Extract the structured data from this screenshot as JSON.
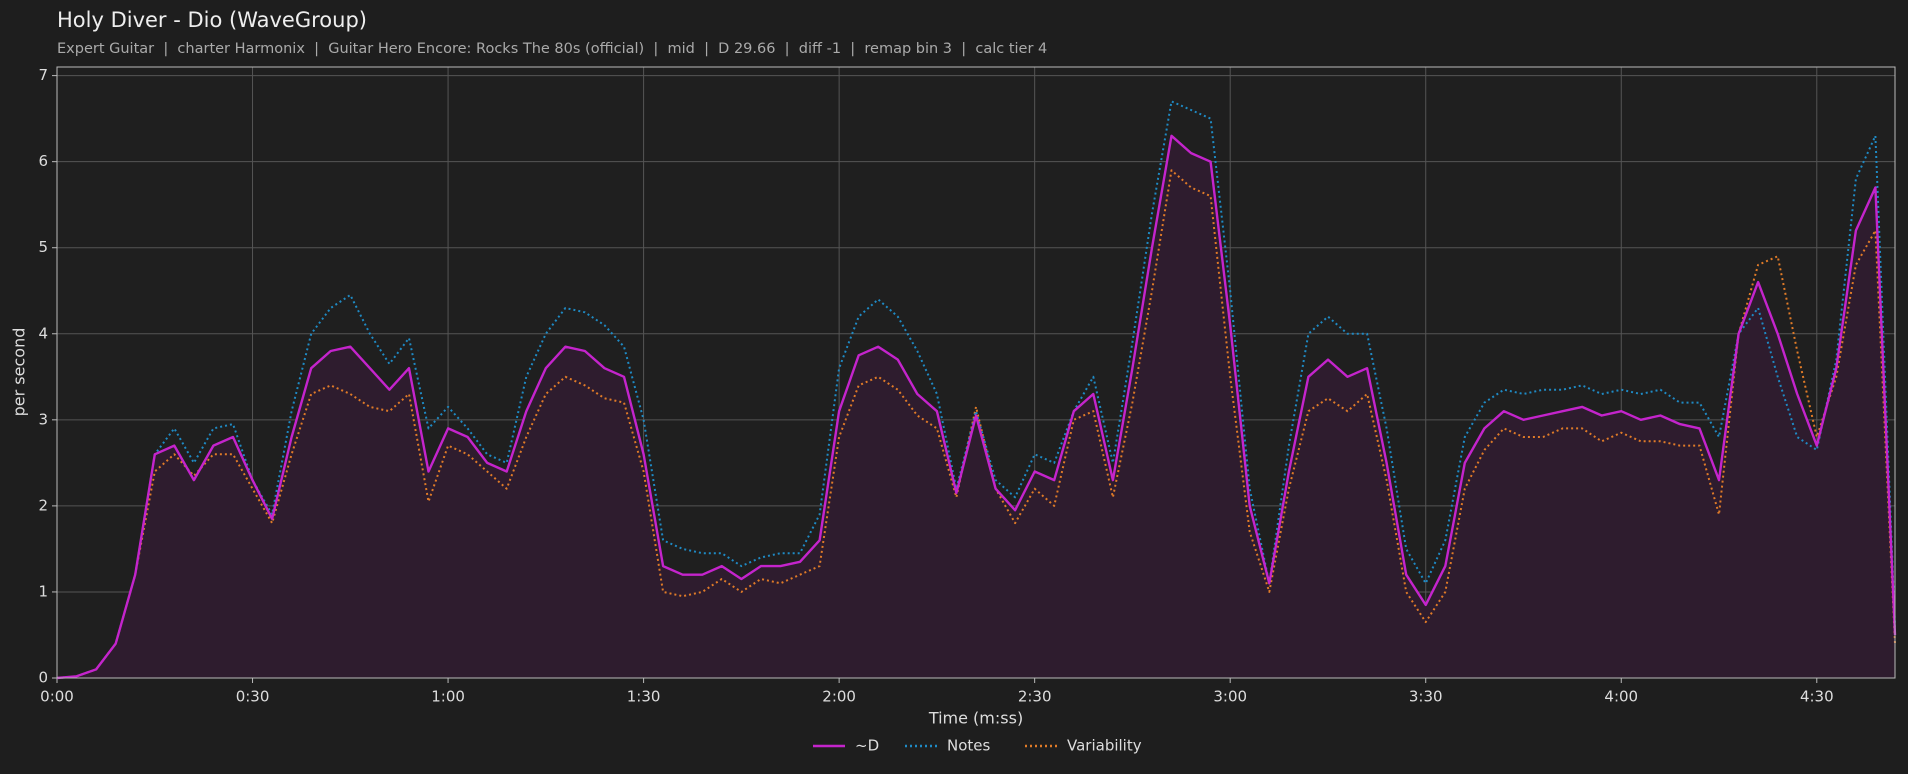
{
  "chart_data": {
    "type": "line",
    "title": "Holy Diver - Dio (WaveGroup)",
    "subtitle": "Expert Guitar  |  charter Harmonix  |  Guitar Hero Encore: Rocks The 80s (official)  |  mid  |  D 29.66  |  diff -1  |  remap bin 3  |  calc tier 4",
    "x_label": "Time (m:ss)",
    "y_label": "per second",
    "xlim": [
      0,
      282
    ],
    "ylim": [
      0,
      7.1
    ],
    "xticks": [
      {
        "value": 0,
        "label": "0:00"
      },
      {
        "value": 30,
        "label": "0:30"
      },
      {
        "value": 60,
        "label": "1:00"
      },
      {
        "value": 90,
        "label": "1:30"
      },
      {
        "value": 120,
        "label": "2:00"
      },
      {
        "value": 150,
        "label": "2:30"
      },
      {
        "value": 180,
        "label": "3:00"
      },
      {
        "value": 210,
        "label": "3:30"
      },
      {
        "value": 240,
        "label": "4:00"
      },
      {
        "value": 270,
        "label": "4:30"
      }
    ],
    "yticks": [
      0,
      1,
      2,
      3,
      4,
      5,
      6,
      7
    ],
    "grid": true,
    "legend": "bottom",
    "x": [
      0,
      3,
      6,
      9,
      12,
      15,
      18,
      21,
      24,
      27,
      30,
      33,
      36,
      39,
      42,
      45,
      48,
      51,
      54,
      57,
      60,
      63,
      66,
      69,
      72,
      75,
      78,
      81,
      84,
      87,
      90,
      93,
      96,
      99,
      102,
      105,
      108,
      111,
      114,
      117,
      120,
      123,
      126,
      129,
      132,
      135,
      138,
      141,
      144,
      147,
      150,
      153,
      156,
      159,
      162,
      165,
      168,
      171,
      174,
      177,
      180,
      183,
      186,
      189,
      192,
      195,
      198,
      201,
      204,
      207,
      210,
      213,
      216,
      219,
      222,
      225,
      228,
      231,
      234,
      237,
      240,
      243,
      246,
      249,
      252,
      255,
      258,
      261,
      264,
      267,
      270,
      273,
      276,
      279,
      282
    ],
    "series": [
      {
        "name": "~D",
        "color": "#c424cc",
        "style": "solid",
        "fill": "#2e1c2e",
        "values": [
          0,
          0.02,
          0.1,
          0.4,
          1.2,
          2.6,
          2.7,
          2.3,
          2.7,
          2.8,
          2.3,
          1.85,
          2.8,
          3.6,
          3.8,
          3.85,
          3.6,
          3.35,
          3.6,
          2.4,
          2.9,
          2.8,
          2.5,
          2.4,
          3.1,
          3.6,
          3.85,
          3.8,
          3.6,
          3.5,
          2.6,
          1.3,
          1.2,
          1.2,
          1.3,
          1.15,
          1.3,
          1.3,
          1.35,
          1.6,
          3.1,
          3.75,
          3.85,
          3.7,
          3.3,
          3.1,
          2.15,
          3.05,
          2.2,
          1.95,
          2.4,
          2.3,
          3.1,
          3.3,
          2.3,
          3.6,
          5.0,
          6.3,
          6.1,
          6.0,
          4.1,
          2.0,
          1.1,
          2.4,
          3.5,
          3.7,
          3.5,
          3.6,
          2.5,
          1.2,
          0.85,
          1.3,
          2.5,
          2.9,
          3.1,
          3.0,
          3.05,
          3.1,
          3.15,
          3.05,
          3.1,
          3.0,
          3.05,
          2.95,
          2.9,
          2.3,
          4.0,
          4.6,
          4.0,
          3.3,
          2.7,
          3.6,
          5.2,
          5.7,
          0.5
        ]
      },
      {
        "name": "Notes",
        "color": "#1f8ac4",
        "style": "dotted",
        "values": [
          0,
          0.02,
          0.1,
          0.4,
          1.2,
          2.6,
          2.9,
          2.5,
          2.9,
          2.95,
          2.3,
          1.9,
          3.1,
          4.0,
          4.3,
          4.45,
          4.0,
          3.65,
          3.95,
          2.9,
          3.15,
          2.9,
          2.6,
          2.5,
          3.5,
          4.0,
          4.3,
          4.25,
          4.1,
          3.85,
          3.0,
          1.6,
          1.5,
          1.45,
          1.45,
          1.3,
          1.4,
          1.45,
          1.45,
          1.9,
          3.6,
          4.2,
          4.4,
          4.2,
          3.8,
          3.3,
          2.2,
          3.1,
          2.3,
          2.1,
          2.6,
          2.5,
          3.1,
          3.5,
          2.5,
          3.9,
          5.4,
          6.7,
          6.6,
          6.5,
          4.5,
          2.2,
          1.1,
          2.7,
          4.0,
          4.2,
          4.0,
          4.0,
          2.9,
          1.5,
          1.1,
          1.6,
          2.8,
          3.2,
          3.35,
          3.3,
          3.35,
          3.35,
          3.4,
          3.3,
          3.35,
          3.3,
          3.35,
          3.2,
          3.2,
          2.8,
          4.0,
          4.3,
          3.5,
          2.8,
          2.65,
          3.7,
          5.8,
          6.3,
          0.6
        ]
      },
      {
        "name": "Variability",
        "color": "#e07b28",
        "style": "dotted",
        "values": [
          0,
          0.02,
          0.1,
          0.4,
          1.2,
          2.4,
          2.6,
          2.35,
          2.6,
          2.6,
          2.2,
          1.8,
          2.6,
          3.3,
          3.4,
          3.3,
          3.15,
          3.1,
          3.3,
          2.05,
          2.7,
          2.6,
          2.4,
          2.2,
          2.8,
          3.3,
          3.5,
          3.4,
          3.25,
          3.2,
          2.4,
          1.0,
          0.95,
          1.0,
          1.15,
          1.0,
          1.15,
          1.1,
          1.2,
          1.3,
          2.8,
          3.4,
          3.5,
          3.35,
          3.05,
          2.9,
          2.1,
          3.15,
          2.2,
          1.8,
          2.2,
          2.0,
          3.0,
          3.1,
          2.1,
          3.2,
          4.5,
          5.9,
          5.7,
          5.6,
          3.5,
          1.7,
          1.0,
          2.2,
          3.1,
          3.25,
          3.1,
          3.3,
          2.3,
          1.0,
          0.65,
          1.0,
          2.2,
          2.65,
          2.9,
          2.8,
          2.8,
          2.9,
          2.9,
          2.75,
          2.85,
          2.75,
          2.75,
          2.7,
          2.7,
          1.9,
          4.0,
          4.8,
          4.9,
          3.8,
          2.8,
          3.5,
          4.8,
          5.2,
          0.4
        ]
      }
    ]
  }
}
